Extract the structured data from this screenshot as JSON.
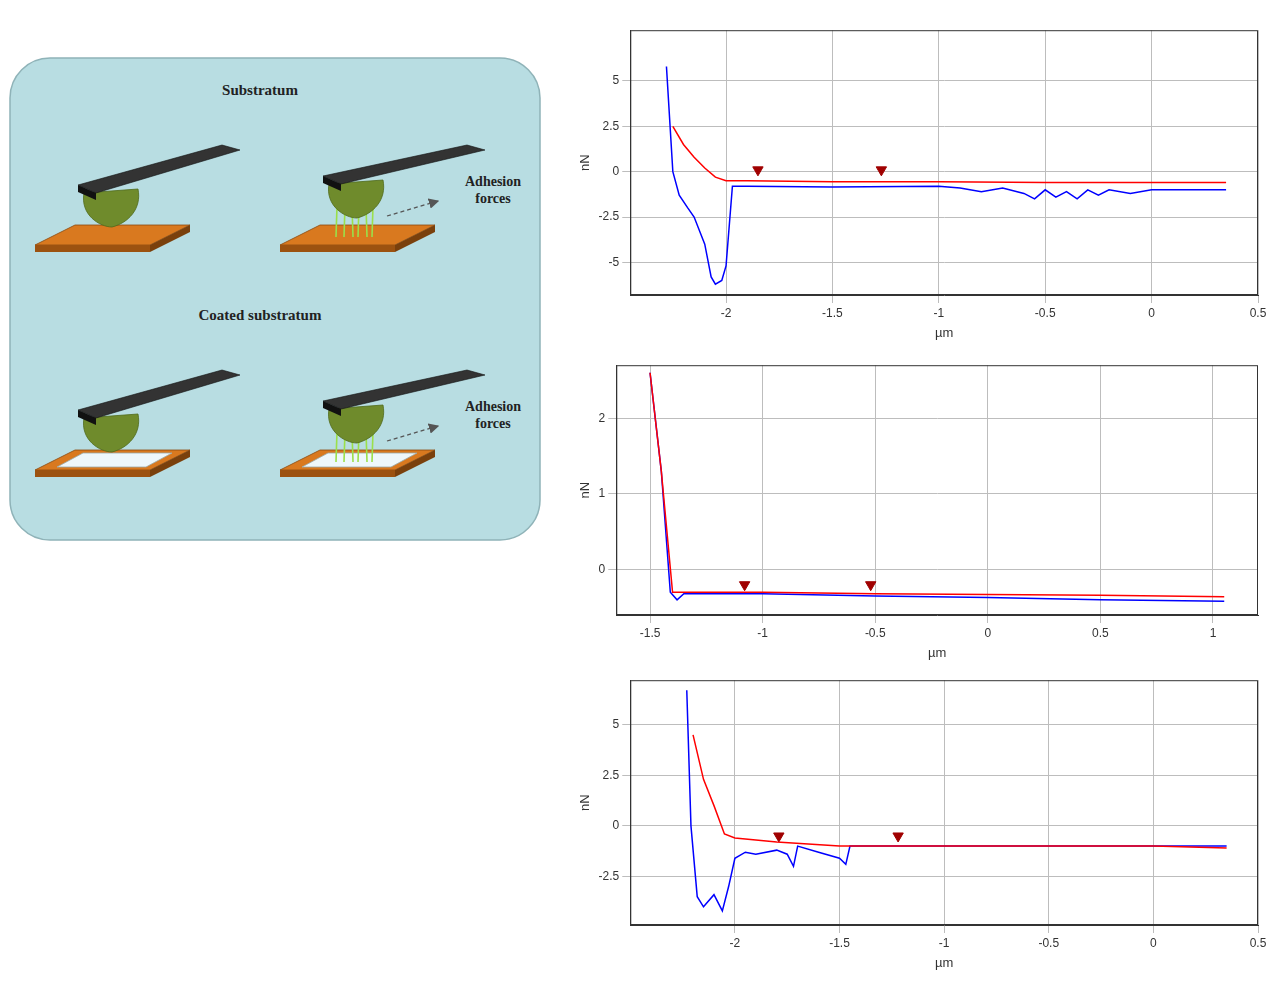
{
  "diagram": {
    "panels": [
      {
        "title": "Substratum",
        "label": "Adhesion forces"
      },
      {
        "title": "Coated substratum",
        "label": "Adhesion forces"
      }
    ]
  },
  "chart_data": [
    {
      "type": "line",
      "x_label": "µm",
      "y_label": "nN",
      "grid": true,
      "xlim": [
        -2.45,
        0.5
      ],
      "xticks": [
        -2,
        -1.5,
        -1,
        -0.5,
        0,
        0.5
      ],
      "ylim": [
        -6.8,
        7.8
      ],
      "yticks": [
        -5,
        -2.5,
        0,
        2.5,
        5
      ],
      "series": [
        {
          "color": "#ff0000",
          "type": "line",
          "x": [
            -2.25,
            -2.2,
            -2.15,
            -2.1,
            -2.05,
            -2.0,
            -1.9,
            -1.5,
            -1.0,
            -0.5,
            0,
            0.35
          ],
          "values": [
            2.5,
            1.5,
            0.8,
            0.2,
            -0.3,
            -0.5,
            -0.5,
            -0.55,
            -0.55,
            -0.6,
            -0.6,
            -0.6
          ]
        },
        {
          "color": "#0000ff",
          "type": "line",
          "x": [
            -2.28,
            -2.25,
            -2.22,
            -2.18,
            -2.15,
            -2.1,
            -2.07,
            -2.05,
            -2.02,
            -2.0,
            -1.97,
            -1.9,
            -1.5,
            -1.0,
            -0.9,
            -0.8,
            -0.7,
            -0.6,
            -0.55,
            -0.5,
            -0.45,
            -0.4,
            -0.35,
            -0.3,
            -0.25,
            -0.2,
            -0.1,
            0,
            0.35
          ],
          "values": [
            5.8,
            0,
            -1.3,
            -2.0,
            -2.5,
            -4.0,
            -5.8,
            -6.2,
            -6.0,
            -5.2,
            -0.8,
            -0.8,
            -0.85,
            -0.8,
            -0.9,
            -1.1,
            -0.9,
            -1.2,
            -1.5,
            -1.0,
            -1.4,
            -1.1,
            -1.5,
            -1.0,
            -1.3,
            -1.0,
            -1.2,
            -1.0,
            -1.0
          ]
        },
        {
          "color": "#a00000",
          "type": "scatter",
          "marker": "triangle_down",
          "x": [
            -1.85,
            -1.27
          ],
          "values": [
            0.1,
            0.1
          ]
        }
      ]
    },
    {
      "type": "line",
      "x_label": "µm",
      "y_label": "nN",
      "grid": true,
      "xlim": [
        -1.65,
        1.2
      ],
      "xticks": [
        -1.5,
        -1,
        -0.5,
        0,
        0.5,
        1
      ],
      "ylim": [
        -0.6,
        2.7
      ],
      "yticks": [
        0,
        1,
        2
      ],
      "series": [
        {
          "color": "#ff0000",
          "type": "line",
          "x": [
            -1.5,
            -1.45,
            -1.4,
            -1.35,
            -1.0,
            -0.5,
            0,
            0.5,
            1.05
          ],
          "values": [
            2.6,
            1.3,
            -0.3,
            -0.3,
            -0.3,
            -0.32,
            -0.33,
            -0.34,
            -0.36
          ]
        },
        {
          "color": "#0000ff",
          "type": "line",
          "x": [
            -1.5,
            -1.45,
            -1.41,
            -1.38,
            -1.35,
            -1.0,
            -0.5,
            0,
            0.5,
            1.05
          ],
          "values": [
            2.6,
            1.3,
            -0.3,
            -0.4,
            -0.32,
            -0.32,
            -0.35,
            -0.37,
            -0.4,
            -0.42
          ]
        },
        {
          "color": "#a00000",
          "type": "scatter",
          "marker": "triangle_down",
          "x": [
            -1.08,
            -0.52
          ],
          "values": [
            -0.2,
            -0.2
          ]
        }
      ]
    },
    {
      "type": "line",
      "x_label": "µm",
      "y_label": "nN",
      "grid": true,
      "xlim": [
        -2.5,
        0.5
      ],
      "xticks": [
        -2,
        -1.5,
        -1,
        -0.5,
        0,
        0.5
      ],
      "ylim": [
        -4.9,
        7.2
      ],
      "yticks": [
        -2.5,
        0,
        2.5,
        5
      ],
      "series": [
        {
          "color": "#ff0000",
          "type": "line",
          "x": [
            -2.2,
            -2.15,
            -2.1,
            -2.05,
            -2.0,
            -1.8,
            -1.5,
            -1.0,
            -0.5,
            0,
            0.35
          ],
          "values": [
            4.5,
            2.3,
            1.0,
            -0.4,
            -0.6,
            -0.8,
            -1.0,
            -1.0,
            -1.0,
            -1.0,
            -1.1
          ]
        },
        {
          "color": "#0000ff",
          "type": "line",
          "x": [
            -2.23,
            -2.21,
            -2.18,
            -2.15,
            -2.1,
            -2.06,
            -2.03,
            -2.0,
            -1.95,
            -1.9,
            -1.8,
            -1.75,
            -1.72,
            -1.7,
            -1.6,
            -1.5,
            -1.47,
            -1.45,
            -1.0,
            -0.5,
            0,
            0.35
          ],
          "values": [
            6.7,
            0,
            -3.5,
            -4.0,
            -3.4,
            -4.2,
            -3.0,
            -1.6,
            -1.3,
            -1.4,
            -1.2,
            -1.4,
            -2.0,
            -1.0,
            -1.3,
            -1.6,
            -1.9,
            -1.0,
            -1.0,
            -1.0,
            -1.0,
            -1.0
          ]
        },
        {
          "color": "#a00000",
          "type": "scatter",
          "marker": "triangle_down",
          "x": [
            -1.79,
            -1.22
          ],
          "values": [
            -0.5,
            -0.5
          ]
        }
      ]
    }
  ]
}
